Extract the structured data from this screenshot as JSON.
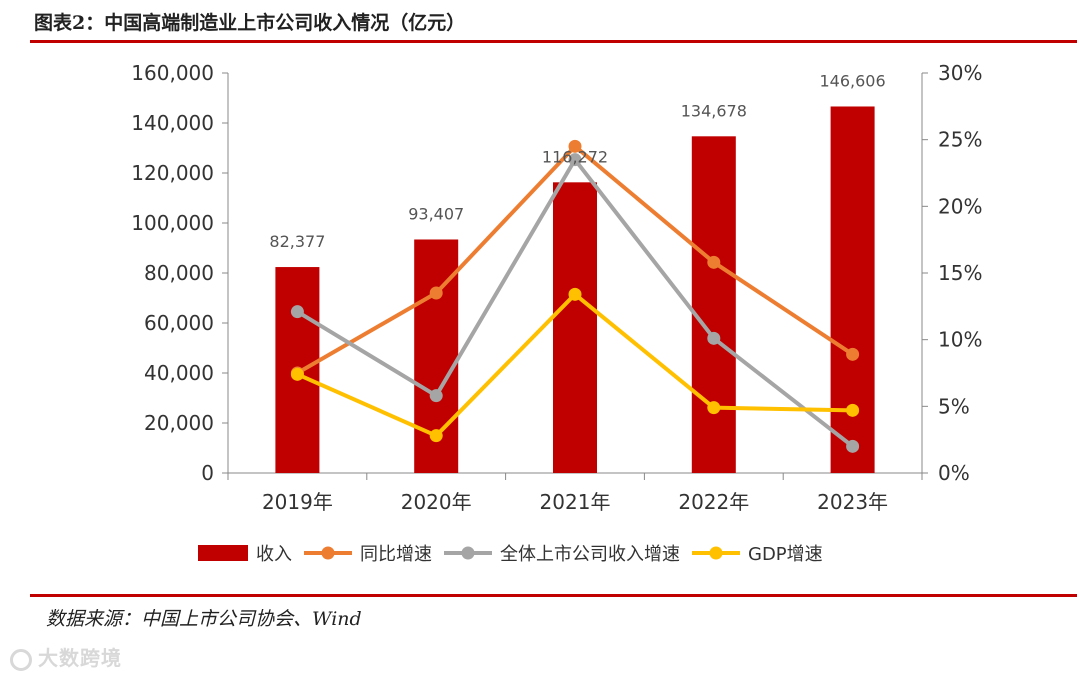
{
  "figure": {
    "title": "图表2：中国高端制造业上市公司收入情况（亿元）",
    "source": "数据来源：中国上市公司协会、Wind",
    "watermark": "大数跨境"
  },
  "chart_data": {
    "type": "bar",
    "categories": [
      "2019年",
      "2020年",
      "2021年",
      "2022年",
      "2023年"
    ],
    "series": [
      {
        "name": "收入",
        "kind": "bar",
        "axis": "left",
        "color": "#c00000",
        "values": [
          82377,
          93407,
          116272,
          134678,
          146606
        ],
        "labels": [
          "82,377",
          "93,407",
          "116,272",
          "134,678",
          "146,606"
        ]
      },
      {
        "name": "同比增速",
        "kind": "line",
        "axis": "right",
        "color": "#ed7d31",
        "values": [
          7.5,
          13.5,
          24.5,
          15.8,
          8.9
        ]
      },
      {
        "name": "全体上市公司收入增速",
        "kind": "line",
        "axis": "right",
        "color": "#a5a5a5",
        "values": [
          12.1,
          5.8,
          23.5,
          10.1,
          2.0
        ]
      },
      {
        "name": "GDP增速",
        "kind": "line",
        "axis": "right",
        "color": "#ffc000",
        "values": [
          7.4,
          2.8,
          13.4,
          4.9,
          4.7
        ]
      }
    ],
    "y_left": {
      "min": 0,
      "max": 160000,
      "ticks": [
        "0",
        "20,000",
        "40,000",
        "60,000",
        "80,000",
        "100,000",
        "120,000",
        "140,000",
        "160,000"
      ]
    },
    "y_right": {
      "min": 0,
      "max": 30,
      "ticks": [
        "0%",
        "5%",
        "10%",
        "15%",
        "20%",
        "25%",
        "30%"
      ]
    },
    "grid": false,
    "legend_position": "bottom"
  }
}
